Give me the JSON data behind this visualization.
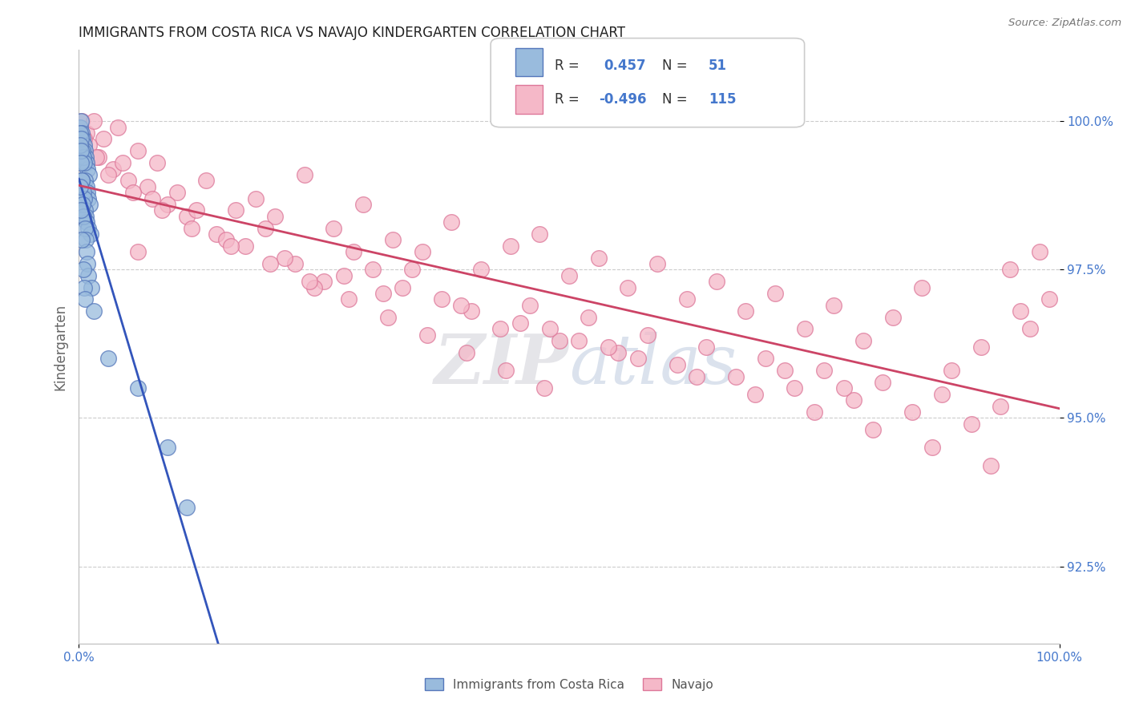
{
  "title": "IMMIGRANTS FROM COSTA RICA VS NAVAJO KINDERGARTEN CORRELATION CHART",
  "source": "Source: ZipAtlas.com",
  "ylabel": "Kindergarten",
  "ytick_labels": [
    "92.5%",
    "95.0%",
    "97.5%",
    "100.0%"
  ],
  "ytick_values": [
    92.5,
    95.0,
    97.5,
    100.0
  ],
  "legend_blue_label": "Immigrants from Costa Rica",
  "legend_pink_label": "Navajo",
  "blue_R": 0.457,
  "blue_N": 51,
  "pink_R": -0.496,
  "pink_N": 115,
  "blue_scatter_x": [
    0.1,
    0.2,
    0.3,
    0.4,
    0.5,
    0.6,
    0.7,
    0.8,
    0.9,
    1.0,
    0.15,
    0.25,
    0.35,
    0.45,
    0.55,
    0.65,
    0.75,
    0.85,
    0.95,
    1.1,
    0.12,
    0.22,
    0.32,
    0.42,
    0.52,
    0.62,
    0.72,
    0.82,
    0.92,
    1.2,
    0.18,
    0.28,
    0.38,
    0.48,
    0.58,
    0.68,
    0.78,
    0.88,
    0.98,
    1.3,
    0.13,
    0.23,
    0.33,
    0.43,
    0.53,
    0.63,
    1.5,
    3.0,
    6.0,
    9.0,
    11.0
  ],
  "blue_scatter_y": [
    99.9,
    100.0,
    99.8,
    99.7,
    99.6,
    99.5,
    99.4,
    99.3,
    99.2,
    99.1,
    99.8,
    99.7,
    99.5,
    99.4,
    99.3,
    99.0,
    98.9,
    98.8,
    98.7,
    98.6,
    99.6,
    99.5,
    99.0,
    98.8,
    98.7,
    98.5,
    98.4,
    98.3,
    98.2,
    98.1,
    99.3,
    99.0,
    98.6,
    98.4,
    98.2,
    98.0,
    97.8,
    97.6,
    97.4,
    97.2,
    98.9,
    98.5,
    98.0,
    97.5,
    97.2,
    97.0,
    96.8,
    96.0,
    95.5,
    94.5,
    93.5
  ],
  "pink_scatter_x": [
    0.3,
    0.8,
    1.5,
    2.5,
    4.0,
    6.0,
    8.0,
    10.0,
    13.0,
    16.0,
    18.0,
    20.0,
    23.0,
    26.0,
    29.0,
    32.0,
    35.0,
    38.0,
    41.0,
    44.0,
    47.0,
    50.0,
    53.0,
    56.0,
    59.0,
    62.0,
    65.0,
    68.0,
    71.0,
    74.0,
    77.0,
    80.0,
    83.0,
    86.0,
    89.0,
    92.0,
    95.0,
    98.0,
    1.0,
    2.0,
    3.5,
    5.0,
    7.0,
    9.0,
    11.0,
    14.0,
    17.0,
    19.0,
    22.0,
    25.0,
    28.0,
    31.0,
    34.0,
    37.0,
    40.0,
    43.0,
    46.0,
    49.0,
    52.0,
    55.0,
    58.0,
    61.0,
    64.0,
    67.0,
    70.0,
    73.0,
    76.0,
    79.0,
    82.0,
    85.0,
    88.0,
    91.0,
    94.0,
    97.0,
    4.5,
    7.5,
    12.0,
    15.0,
    21.0,
    27.0,
    33.0,
    39.0,
    45.0,
    51.0,
    57.0,
    63.0,
    69.0,
    75.0,
    81.0,
    87.0,
    93.0,
    99.0,
    6.0,
    24.0,
    48.0,
    72.0,
    96.0,
    30.0,
    54.0,
    78.0,
    0.5,
    1.8,
    3.0,
    5.5,
    8.5,
    11.5,
    15.5,
    19.5,
    23.5,
    27.5,
    31.5,
    35.5,
    39.5,
    43.5,
    47.5
  ],
  "pink_scatter_y": [
    100.0,
    99.8,
    100.0,
    99.7,
    99.9,
    99.5,
    99.3,
    98.8,
    99.0,
    98.5,
    98.7,
    98.4,
    99.1,
    98.2,
    98.6,
    98.0,
    97.8,
    98.3,
    97.5,
    97.9,
    98.1,
    97.4,
    97.7,
    97.2,
    97.6,
    97.0,
    97.3,
    96.8,
    97.1,
    96.5,
    96.9,
    96.3,
    96.7,
    97.2,
    95.8,
    96.2,
    97.5,
    97.8,
    99.6,
    99.4,
    99.2,
    99.0,
    98.9,
    98.6,
    98.4,
    98.1,
    97.9,
    98.2,
    97.6,
    97.3,
    97.8,
    97.1,
    97.5,
    97.0,
    96.8,
    96.5,
    96.9,
    96.3,
    96.7,
    96.1,
    96.4,
    95.9,
    96.2,
    95.7,
    96.0,
    95.5,
    95.8,
    95.3,
    95.6,
    95.1,
    95.4,
    94.9,
    95.2,
    96.5,
    99.3,
    98.7,
    98.5,
    98.0,
    97.7,
    97.4,
    97.2,
    96.9,
    96.6,
    96.3,
    96.0,
    95.7,
    95.4,
    95.1,
    94.8,
    94.5,
    94.2,
    97.0,
    97.8,
    97.2,
    96.5,
    95.8,
    96.8,
    97.5,
    96.2,
    95.5,
    99.7,
    99.4,
    99.1,
    98.8,
    98.5,
    98.2,
    97.9,
    97.6,
    97.3,
    97.0,
    96.7,
    96.4,
    96.1,
    95.8,
    95.5
  ],
  "xlim": [
    0,
    100
  ],
  "ylim": [
    91.2,
    101.2
  ],
  "watermark_zip": "ZIP",
  "watermark_atlas": "atlas",
  "background_color": "#ffffff",
  "grid_color": "#cccccc",
  "blue_line_color": "#3355bb",
  "pink_line_color": "#cc4466",
  "blue_dot_facecolor": "#99bbdd",
  "blue_dot_edgecolor": "#5577bb",
  "pink_dot_facecolor": "#f5b8c8",
  "pink_dot_edgecolor": "#dd7799",
  "title_fontsize": 12,
  "axis_label_color": "#666666",
  "tick_label_color": "#4477cc",
  "source_color": "#777777"
}
